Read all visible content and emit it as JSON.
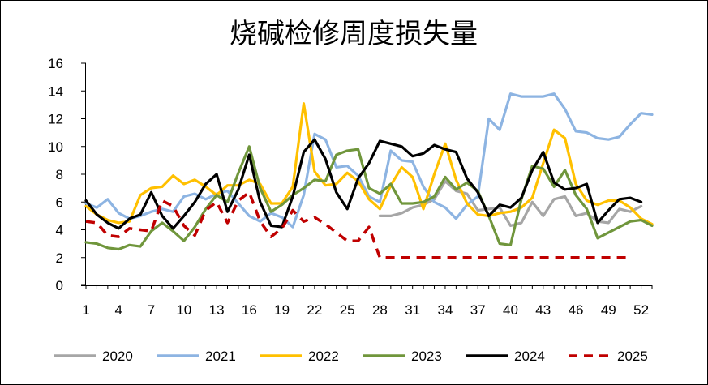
{
  "chart_data": {
    "type": "line",
    "title": "烧碱检修周度损失量",
    "xlabel": "",
    "ylabel": "",
    "x": [
      1,
      2,
      3,
      4,
      5,
      6,
      7,
      8,
      9,
      10,
      11,
      12,
      13,
      14,
      15,
      16,
      17,
      18,
      19,
      20,
      21,
      22,
      23,
      24,
      25,
      26,
      27,
      28,
      29,
      30,
      31,
      32,
      33,
      34,
      35,
      36,
      37,
      38,
      39,
      40,
      41,
      42,
      43,
      44,
      45,
      46,
      47,
      48,
      49,
      50,
      51,
      52,
      53
    ],
    "x_ticks": [
      1,
      4,
      7,
      10,
      13,
      16,
      19,
      22,
      25,
      28,
      31,
      34,
      37,
      40,
      43,
      46,
      49,
      52
    ],
    "xlim": [
      1,
      53
    ],
    "ylim": [
      0,
      16
    ],
    "y_ticks": [
      0,
      2,
      4,
      6,
      8,
      10,
      12,
      14,
      16
    ],
    "grid": false,
    "legend_position": "bottom",
    "series": [
      {
        "name": "2020",
        "color": "#a6a6a6",
        "dash": false,
        "values": [
          null,
          null,
          null,
          null,
          null,
          null,
          null,
          null,
          null,
          null,
          null,
          null,
          null,
          null,
          null,
          null,
          null,
          null,
          null,
          null,
          null,
          null,
          null,
          null,
          null,
          null,
          null,
          5.0,
          5.0,
          5.2,
          5.6,
          5.8,
          6.2,
          7.5,
          6.8,
          6.6,
          5.4,
          5.5,
          5.6,
          4.3,
          4.5,
          6.0,
          5.0,
          6.2,
          6.4,
          5.0,
          5.2,
          4.6,
          4.5,
          5.5,
          5.3,
          5.7,
          null
        ]
      },
      {
        "name": "2021",
        "color": "#8db4e2",
        "dash": false,
        "values": [
          5.9,
          5.6,
          6.2,
          5.2,
          4.8,
          5.0,
          5.3,
          5.5,
          5.3,
          6.4,
          6.6,
          6.2,
          6.6,
          6.8,
          5.9,
          5.0,
          4.6,
          5.2,
          4.9,
          4.2,
          6.5,
          10.9,
          10.5,
          8.5,
          8.6,
          7.9,
          6.4,
          6.0,
          9.7,
          9.0,
          8.9,
          7.1,
          6.0,
          5.6,
          4.8,
          5.8,
          6.4,
          12.0,
          11.2,
          13.8,
          13.6,
          13.6,
          13.6,
          13.8,
          12.7,
          11.1,
          11.0,
          10.6,
          10.5,
          10.7,
          11.6,
          12.4,
          12.3
        ]
      },
      {
        "name": "2022",
        "color": "#ffc000",
        "dash": false,
        "values": [
          5.7,
          5.1,
          4.7,
          4.5,
          4.6,
          6.5,
          7.0,
          7.1,
          7.9,
          7.3,
          7.6,
          7.1,
          6.5,
          7.2,
          7.2,
          7.6,
          7.3,
          5.9,
          5.9,
          7.1,
          13.1,
          8.2,
          7.2,
          7.3,
          8.1,
          7.5,
          6.2,
          5.5,
          7.2,
          8.5,
          7.8,
          5.5,
          8.0,
          10.2,
          7.6,
          5.9,
          5.1,
          5.0,
          5.2,
          5.3,
          5.6,
          6.3,
          8.8,
          11.2,
          10.6,
          7.3,
          6.1,
          5.8,
          6.1,
          6.1,
          5.6,
          4.8,
          4.4
        ]
      },
      {
        "name": "2023",
        "color": "#70963c",
        "dash": false,
        "values": [
          3.1,
          3.0,
          2.7,
          2.6,
          2.9,
          2.8,
          3.9,
          4.5,
          3.9,
          3.2,
          4.2,
          5.5,
          6.5,
          6.0,
          8.1,
          10.0,
          7.0,
          5.3,
          5.8,
          6.5,
          7.0,
          7.6,
          7.5,
          9.4,
          9.7,
          9.8,
          7.0,
          6.6,
          7.3,
          5.9,
          5.9,
          6.0,
          6.4,
          7.8,
          6.9,
          7.4,
          6.8,
          5.0,
          3.0,
          2.9,
          6.2,
          8.6,
          8.4,
          7.1,
          8.3,
          6.5,
          5.5,
          3.4,
          3.8,
          4.2,
          4.6,
          4.7,
          4.3
        ]
      },
      {
        "name": "2024",
        "color": "#000000",
        "dash": false,
        "values": [
          6.1,
          5.1,
          4.5,
          4.1,
          4.8,
          5.1,
          6.7,
          5.0,
          4.1,
          5.0,
          6.0,
          7.3,
          8.0,
          5.3,
          6.9,
          9.4,
          6.0,
          4.3,
          4.2,
          6.4,
          9.6,
          10.5,
          9.1,
          6.7,
          5.5,
          7.7,
          8.8,
          10.4,
          10.2,
          10.0,
          9.3,
          9.5,
          10.1,
          9.8,
          9.6,
          7.7,
          6.7,
          5.0,
          5.8,
          5.6,
          6.3,
          8.3,
          9.6,
          7.4,
          6.9,
          7.0,
          7.3,
          4.5,
          5.4,
          6.2,
          6.3,
          6.0,
          null
        ]
      },
      {
        "name": "2025",
        "color": "#c00000",
        "dash": true,
        "values": [
          4.6,
          4.5,
          3.6,
          3.5,
          4.1,
          4.0,
          3.9,
          6.1,
          5.7,
          4.3,
          3.6,
          5.4,
          6.0,
          4.5,
          6.1,
          6.7,
          4.6,
          3.5,
          4.1,
          5.4,
          4.6,
          4.9,
          4.4,
          3.8,
          3.2,
          3.2,
          4.2,
          2.0,
          2.0,
          2.0,
          2.0,
          2.0,
          2.0,
          2.0,
          2.0,
          2.0,
          2.0,
          2.0,
          2.0,
          2.0,
          2.0,
          2.0,
          2.0,
          2.0,
          2.0,
          2.0,
          2.0,
          2.0,
          2.0,
          2.0,
          2.0,
          null,
          null
        ]
      }
    ]
  }
}
